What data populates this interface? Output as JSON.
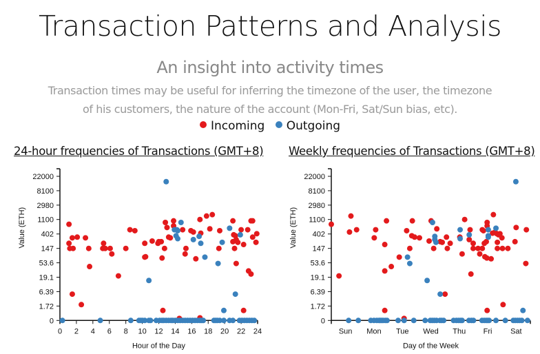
{
  "header": {
    "title": "Transaction Patterns and Analysis",
    "subtitle": "An insight into activity times",
    "description_line1": "Transaction times may be useful for inferring the timezone of the user, the timezone",
    "description_line2": "of his customers, the nature of the account (Mon-Fri, Sat/Sun bias, etc)."
  },
  "legend": [
    {
      "label": "Incoming",
      "color": "#e31a1c"
    },
    {
      "label": "Outgoing",
      "color": "#3a81bd"
    }
  ],
  "chart_data": [
    {
      "type": "scatter",
      "title": "24-hour frequencies of Transactions (GMT+8)",
      "xlabel": "Hour of the Day",
      "ylabel": "Value (ETH)",
      "xlim": [
        0,
        24
      ],
      "xticks": [
        "0",
        "2",
        "4",
        "6",
        "8",
        "10",
        "12",
        "14",
        "16",
        "18",
        "20",
        "22",
        "24"
      ],
      "yscale": "log(1+value)",
      "yticks": [
        "0",
        "1.72",
        "6.39",
        "19.1",
        "53.6",
        "147",
        "402",
        "1100",
        "2980",
        "8100",
        "22000"
      ],
      "ylim": [
        0,
        22000
      ],
      "series": [
        {
          "name": "Incoming",
          "color": "#e31a1c",
          "points": [
            [
              1.1,
              790
            ],
            [
              1.1,
              210
            ],
            [
              1.2,
              147
            ],
            [
              1.6,
              147
            ],
            [
              1.5,
              307
            ],
            [
              2.1,
              323
            ],
            [
              1.5,
              5.2
            ],
            [
              2.6,
              2.0
            ],
            [
              3.1,
              307
            ],
            [
              3.5,
              147
            ],
            [
              3.6,
              41
            ],
            [
              5.3,
              210
            ],
            [
              5.2,
              147
            ],
            [
              5.5,
              147
            ],
            [
              6.1,
              147
            ],
            [
              6.3,
              100
            ],
            [
              7.1,
              21
            ],
            [
              8.0,
              147
            ],
            [
              8.5,
              540
            ],
            [
              9.1,
              505
            ],
            [
              10.3,
              210
            ],
            [
              10.3,
              80
            ],
            [
              10.4,
              82
            ],
            [
              11.2,
              246
            ],
            [
              11.9,
              210
            ],
            [
              12.0,
              235
            ],
            [
              12.3,
              235
            ],
            [
              12.4,
              75
            ],
            [
              12.5,
              1.0
            ],
            [
              12.7,
              147
            ],
            [
              12.8,
              895
            ],
            [
              13.0,
              630
            ],
            [
              13.2,
              323
            ],
            [
              13.4,
              307
            ],
            [
              13.8,
              1000
            ],
            [
              13.8,
              705
            ],
            [
              14.9,
              540
            ],
            [
              15.3,
              147
            ],
            [
              15.2,
              100
            ],
            [
              14.5,
              0.15
            ],
            [
              15.9,
              505
            ],
            [
              16.2,
              460
            ],
            [
              16.5,
              71
            ],
            [
              17.0,
              1100
            ],
            [
              17.1,
              425
            ],
            [
              17.0,
              0.2
            ],
            [
              17.8,
              1400
            ],
            [
              18.2,
              575
            ],
            [
              18.5,
              1540
            ],
            [
              19.4,
              505
            ],
            [
              19.3,
              147
            ],
            [
              21.0,
              1000
            ],
            [
              21.0,
              235
            ],
            [
              21.1,
              380
            ],
            [
              21.3,
              355
            ],
            [
              21.2,
              147
            ],
            [
              21.4,
              270
            ],
            [
              21.6,
              225
            ],
            [
              21.4,
              51
            ],
            [
              22.0,
              540
            ],
            [
              22.3,
              193
            ],
            [
              22.3,
              1.0
            ],
            [
              22.8,
              540
            ],
            [
              22.9,
              30
            ],
            [
              23.2,
              24
            ],
            [
              23.2,
              1000
            ],
            [
              23.4,
              1000
            ],
            [
              23.4,
              323
            ],
            [
              23.8,
              225
            ],
            [
              23.9,
              410
            ]
          ]
        },
        {
          "name": "Outgoing",
          "color": "#3a81bd",
          "points": [
            [
              12.9,
              15200
            ],
            [
              10.8,
              15
            ],
            [
              13.9,
              540
            ],
            [
              14.2,
              540
            ],
            [
              14.3,
              505
            ],
            [
              14.1,
              355
            ],
            [
              14.3,
              290
            ],
            [
              14.7,
              895
            ],
            [
              16.2,
              272
            ],
            [
              17.1,
              210
            ],
            [
              16.9,
              340
            ],
            [
              17.6,
              80
            ],
            [
              19.2,
              51
            ],
            [
              19.7,
              225
            ],
            [
              19.9,
              1.0
            ],
            [
              20.6,
              600
            ],
            [
              21.9,
              380
            ],
            [
              21.3,
              5.2
            ],
            [
              0.3,
              0
            ],
            [
              4.9,
              0
            ],
            [
              8.6,
              0
            ],
            [
              9.6,
              0
            ],
            [
              9.8,
              0
            ],
            [
              10.0,
              0
            ],
            [
              10.3,
              0
            ],
            [
              10.8,
              0
            ],
            [
              11.0,
              0
            ],
            [
              11.7,
              0
            ],
            [
              12.1,
              0
            ],
            [
              12.4,
              0
            ],
            [
              12.6,
              0
            ],
            [
              12.9,
              0
            ],
            [
              13.2,
              0
            ],
            [
              13.5,
              0
            ],
            [
              13.7,
              0
            ],
            [
              14.0,
              0
            ],
            [
              14.3,
              0
            ],
            [
              14.6,
              0
            ],
            [
              14.9,
              0
            ],
            [
              15.2,
              0
            ],
            [
              15.5,
              0
            ],
            [
              15.8,
              0
            ],
            [
              16.1,
              0
            ],
            [
              16.4,
              0
            ],
            [
              16.7,
              0
            ],
            [
              17.0,
              0
            ],
            [
              17.2,
              0
            ],
            [
              17.4,
              0
            ],
            [
              18.7,
              0
            ],
            [
              18.9,
              0
            ],
            [
              19.1,
              0
            ],
            [
              19.4,
              0
            ],
            [
              19.9,
              0
            ],
            [
              20.6,
              0
            ],
            [
              21.0,
              0
            ],
            [
              21.8,
              0
            ],
            [
              22.1,
              0
            ],
            [
              22.4,
              0
            ],
            [
              22.7,
              0
            ],
            [
              23.0,
              0
            ],
            [
              23.3,
              0
            ],
            [
              23.6,
              0
            ]
          ]
        }
      ]
    },
    {
      "type": "scatter",
      "title": "Weekly frequencies of Transactions (GMT+8)",
      "xlabel": "Day of the Week",
      "ylabel": "Value (ETH)",
      "xlim": [
        0,
        7
      ],
      "xticks": [
        "Sun",
        "Mon",
        "Tue",
        "Wed",
        "Thu",
        "Fri",
        "Sat"
      ],
      "yscale": "log(1+value)",
      "yticks": [
        "0",
        "1.72",
        "6.39",
        "19.1",
        "53.6",
        "147",
        "402",
        "1100",
        "2980",
        "8100",
        "22000"
      ],
      "ylim": [
        0,
        22000
      ],
      "series": [
        {
          "name": "Incoming",
          "color": "#e31a1c",
          "points": [
            [
              0.0,
              790
            ],
            [
              0.27,
              21
            ],
            [
              0.69,
              1400
            ],
            [
              0.64,
              460
            ],
            [
              0.89,
              540
            ],
            [
              1.51,
              307
            ],
            [
              1.56,
              540
            ],
            [
              1.88,
              193
            ],
            [
              1.88,
              30
            ],
            [
              1.88,
              1.0
            ],
            [
              1.94,
              1000
            ],
            [
              2.11,
              41
            ],
            [
              2.39,
              80
            ],
            [
              2.56,
              0.15
            ],
            [
              2.65,
              505
            ],
            [
              2.76,
              147
            ],
            [
              2.83,
              355
            ],
            [
              2.85,
              1000
            ],
            [
              2.93,
              323
            ],
            [
              3.1,
              307
            ],
            [
              3.44,
              246
            ],
            [
              3.51,
              1000
            ],
            [
              3.6,
              147
            ],
            [
              3.71,
              575
            ],
            [
              3.83,
              235
            ],
            [
              3.9,
              225
            ],
            [
              4.05,
              323
            ],
            [
              4.08,
              147
            ],
            [
              4.18,
              210
            ],
            [
              4.0,
              5.2
            ],
            [
              4.52,
              323
            ],
            [
              4.6,
              100
            ],
            [
              4.69,
              1100
            ],
            [
              4.85,
              272
            ],
            [
              4.88,
              540
            ],
            [
              4.91,
              24
            ],
            [
              4.99,
              210
            ],
            [
              4.99,
              147
            ],
            [
              5.16,
              147
            ],
            [
              5.22,
              100
            ],
            [
              5.31,
              147
            ],
            [
              5.31,
              540
            ],
            [
              5.35,
              505
            ],
            [
              5.4,
              82
            ],
            [
              5.47,
              75
            ],
            [
              5.38,
              210
            ],
            [
              5.45,
              235
            ],
            [
              5.48,
              895
            ],
            [
              5.48,
              705
            ],
            [
              5.48,
              1.0
            ],
            [
              5.62,
              71
            ],
            [
              5.67,
              425
            ],
            [
              5.7,
              1540
            ],
            [
              5.76,
              460
            ],
            [
              5.82,
              410
            ],
            [
              5.88,
              380
            ],
            [
              5.93,
              410
            ],
            [
              5.84,
              225
            ],
            [
              5.84,
              147
            ],
            [
              6.0,
              307
            ],
            [
              6.02,
              147
            ],
            [
              6.04,
              2.0
            ],
            [
              6.21,
              147
            ],
            [
              6.46,
              235
            ],
            [
              6.5,
              630
            ],
            [
              6.84,
              51
            ],
            [
              6.86,
              540
            ]
          ]
        },
        {
          "name": "Outgoing",
          "color": "#3a81bd",
          "points": [
            [
              3.56,
              895
            ],
            [
              3.64,
              340
            ],
            [
              3.64,
              272
            ],
            [
              3.68,
              225
            ],
            [
              3.37,
              15
            ],
            [
              3.83,
              5.2
            ],
            [
              2.68,
              80
            ],
            [
              2.76,
              51
            ],
            [
              4.53,
              540
            ],
            [
              4.53,
              290
            ],
            [
              4.85,
              380
            ],
            [
              5.52,
              540
            ],
            [
              5.52,
              355
            ],
            [
              5.52,
              323
            ],
            [
              5.79,
              600
            ],
            [
              6.49,
              15200
            ],
            [
              6.74,
              1.0
            ],
            [
              0.61,
              0
            ],
            [
              0.95,
              0
            ],
            [
              1.39,
              0
            ],
            [
              1.5,
              0
            ],
            [
              1.6,
              0
            ],
            [
              1.68,
              0
            ],
            [
              1.72,
              0
            ],
            [
              1.77,
              0
            ],
            [
              1.82,
              0
            ],
            [
              1.9,
              0
            ],
            [
              1.96,
              0
            ],
            [
              2.35,
              0
            ],
            [
              2.56,
              0
            ],
            [
              2.9,
              0
            ],
            [
              3.3,
              0
            ],
            [
              3.48,
              0
            ],
            [
              3.55,
              0
            ],
            [
              3.62,
              0
            ],
            [
              3.7,
              0
            ],
            [
              3.82,
              0
            ],
            [
              3.88,
              0
            ],
            [
              3.95,
              0
            ],
            [
              4.3,
              0
            ],
            [
              4.4,
              0
            ],
            [
              4.48,
              0
            ],
            [
              4.55,
              0
            ],
            [
              4.6,
              0
            ],
            [
              4.84,
              0
            ],
            [
              4.93,
              0
            ],
            [
              5.0,
              0
            ],
            [
              5.3,
              0
            ],
            [
              5.38,
              0
            ],
            [
              5.45,
              0
            ],
            [
              5.5,
              0
            ],
            [
              5.55,
              0
            ],
            [
              5.79,
              0
            ],
            [
              6.12,
              0
            ],
            [
              6.4,
              0
            ],
            [
              6.47,
              0
            ],
            [
              6.55,
              0
            ],
            [
              6.62,
              0
            ],
            [
              6.7,
              0
            ],
            [
              6.9,
              0
            ]
          ]
        }
      ]
    }
  ]
}
